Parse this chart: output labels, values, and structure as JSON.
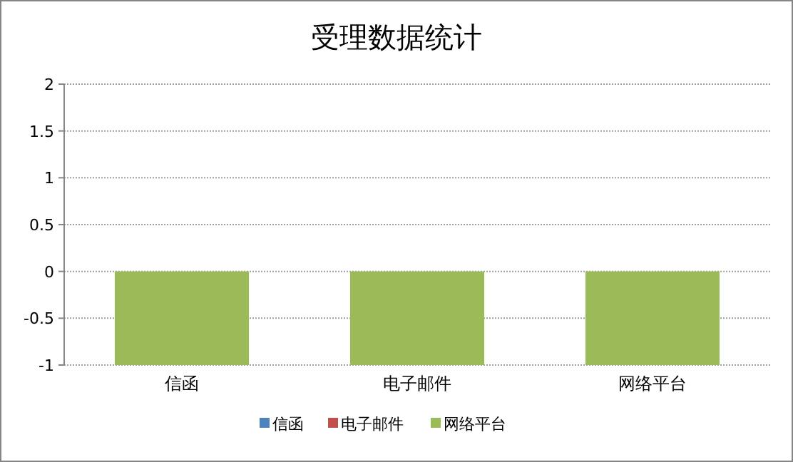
{
  "chart_data": {
    "type": "bar",
    "title": "受理数据统计",
    "categories": [
      "信函",
      "电子邮件",
      "网络平台"
    ],
    "series": [
      {
        "name": "信函",
        "color": "#4f81bd",
        "values": [
          0,
          0,
          0
        ]
      },
      {
        "name": "电子邮件",
        "color": "#c0504d",
        "values": [
          0,
          0,
          0
        ]
      },
      {
        "name": "网络平台",
        "color": "#9bbb59",
        "values": [
          -1,
          -1,
          -1
        ]
      }
    ],
    "ylim": [
      -1,
      2
    ],
    "yticks": [
      -1,
      -0.5,
      0,
      0.5,
      1,
      1.5,
      2
    ],
    "grid": "y",
    "legend": "bottom"
  }
}
